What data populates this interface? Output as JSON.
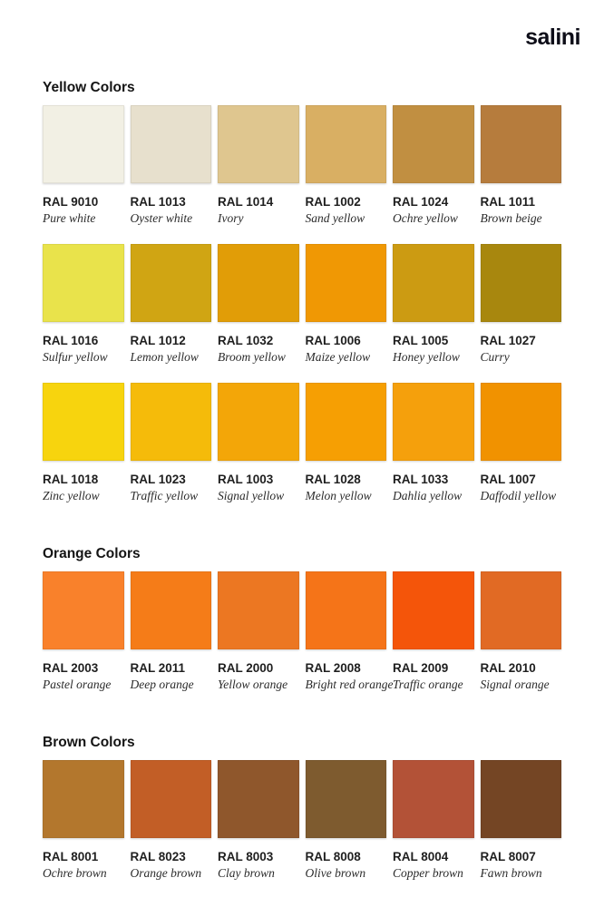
{
  "brand": "salini",
  "palette": {
    "page_background": "#ffffff",
    "logo_color": "#0d0d18",
    "heading_color": "#141414",
    "code_color": "#1f1f1f",
    "name_color": "#2b2b2b"
  },
  "sections": [
    {
      "title": "Yellow Colors",
      "rows": [
        [
          {
            "code": "RAL 9010",
            "name": "Pure white",
            "hex": "#F2F0E4"
          },
          {
            "code": "RAL 1013",
            "name": "Oyster white",
            "hex": "#E7E0CD"
          },
          {
            "code": "RAL 1014",
            "name": "Ivory",
            "hex": "#DFC68F"
          },
          {
            "code": "RAL 1002",
            "name": "Sand yellow",
            "hex": "#D9AF63"
          },
          {
            "code": "RAL 1024",
            "name": "Ochre yellow",
            "hex": "#C18F41"
          },
          {
            "code": "RAL 1011",
            "name": "Brown beige",
            "hex": "#B67C3D"
          }
        ],
        [
          {
            "code": "RAL 1016",
            "name": "Sulfur yellow",
            "hex": "#E9E34B"
          },
          {
            "code": "RAL 1012",
            "name": "Lemon yellow",
            "hex": "#D0A513"
          },
          {
            "code": "RAL 1032",
            "name": "Broom yellow",
            "hex": "#E19D07"
          },
          {
            "code": "RAL 1006",
            "name": "Maize yellow",
            "hex": "#F09804"
          },
          {
            "code": "RAL 1005",
            "name": "Honey yellow",
            "hex": "#CC9B12"
          },
          {
            "code": "RAL 1027",
            "name": "Curry",
            "hex": "#A8870E"
          }
        ],
        [
          {
            "code": "RAL 1018",
            "name": "Zinc yellow",
            "hex": "#F7D40E"
          },
          {
            "code": "RAL 1023",
            "name": "Traffic yellow",
            "hex": "#F5BB0A"
          },
          {
            "code": "RAL 1003",
            "name": "Signal yellow",
            "hex": "#F3A608"
          },
          {
            "code": "RAL 1028",
            "name": "Melon yellow",
            "hex": "#F69F03"
          },
          {
            "code": "RAL 1033",
            "name": "Dahlia yellow",
            "hex": "#F5A00C"
          },
          {
            "code": "RAL 1007",
            "name": "Daffodil yellow",
            "hex": "#F19200"
          }
        ]
      ]
    },
    {
      "title": "Orange Colors",
      "rows": [
        [
          {
            "code": "RAL 2003",
            "name": "Pastel orange",
            "hex": "#F9812B"
          },
          {
            "code": "RAL 2011",
            "name": "Deep orange",
            "hex": "#F57C18"
          },
          {
            "code": "RAL 2000",
            "name": "Yellow orange",
            "hex": "#EC7722"
          },
          {
            "code": "RAL 2008",
            "name": "Bright red orange",
            "hex": "#F57418"
          },
          {
            "code": "RAL 2009",
            "name": "Traffic orange",
            "hex": "#F4550A"
          },
          {
            "code": "RAL 2010",
            "name": "Signal orange",
            "hex": "#E16A24"
          }
        ]
      ]
    },
    {
      "title": "Brown Colors",
      "rows": [
        [
          {
            "code": "RAL 8001",
            "name": "Ochre brown",
            "hex": "#B3772D"
          },
          {
            "code": "RAL 8023",
            "name": "Orange brown",
            "hex": "#C25E26"
          },
          {
            "code": "RAL 8003",
            "name": "Clay brown",
            "hex": "#8F572C"
          },
          {
            "code": "RAL 8008",
            "name": "Olive brown",
            "hex": "#7E5B2F"
          },
          {
            "code": "RAL 8004",
            "name": "Copper brown",
            "hex": "#B35237"
          },
          {
            "code": "RAL 8007",
            "name": "Fawn brown",
            "hex": "#744524"
          }
        ]
      ]
    }
  ]
}
